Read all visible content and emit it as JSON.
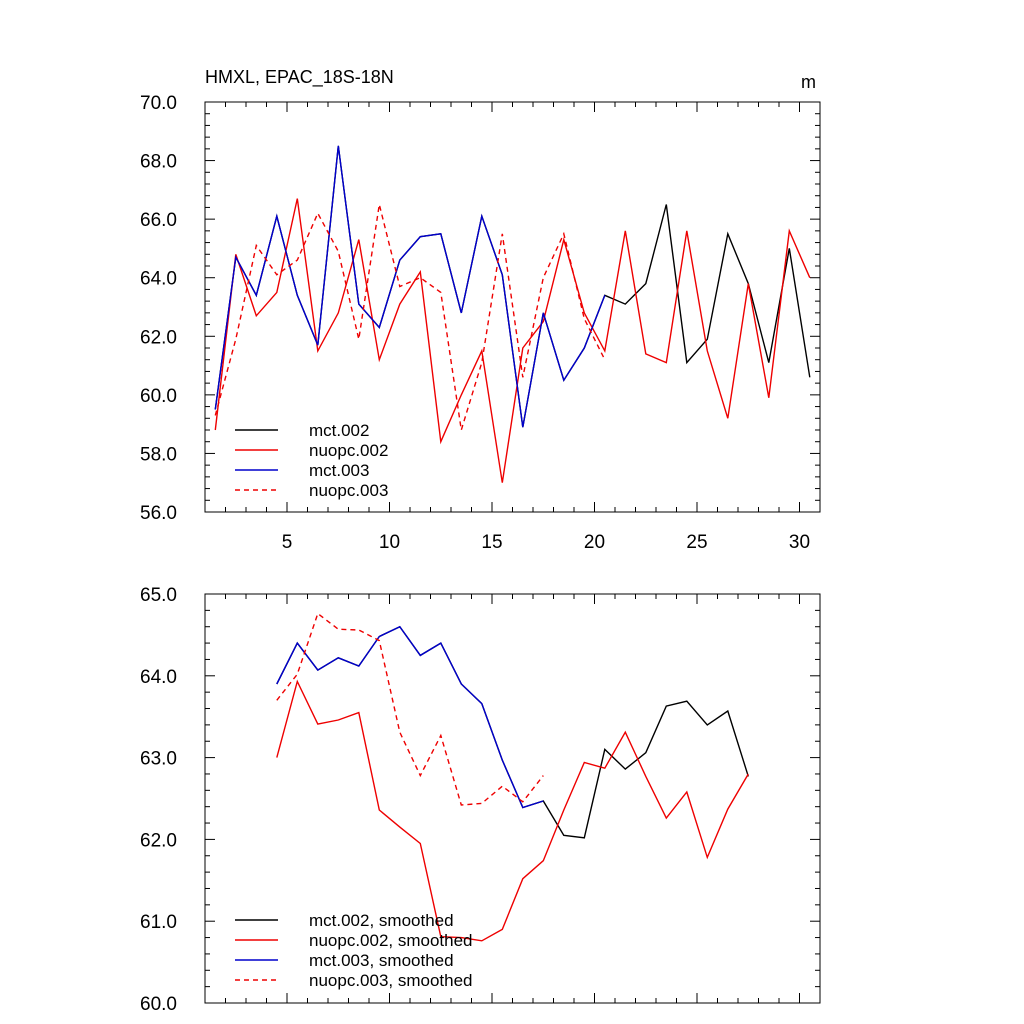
{
  "chart_data": [
    {
      "type": "line",
      "title": "HMXL, EPAC_18S-18N",
      "units": "m",
      "xlabel": "",
      "ylabel": "",
      "xlim": [
        1,
        31
      ],
      "ylim": [
        56.0,
        70.0
      ],
      "x_ticks": [
        5,
        10,
        15,
        20,
        25,
        30
      ],
      "x_tick_labels": [
        "5",
        "10",
        "15",
        "20",
        "25",
        "30"
      ],
      "y_ticks": [
        56.0,
        58.0,
        60.0,
        62.0,
        64.0,
        66.0,
        68.0,
        70.0
      ],
      "y_tick_labels": [
        "56.0",
        "58.0",
        "60.0",
        "62.0",
        "64.0",
        "66.0",
        "68.0",
        "70.0"
      ],
      "legend_position": "lower-left",
      "series": [
        {
          "name": "mct.002",
          "color": "#000000",
          "dash": "solid",
          "x": [
            1.5,
            2.5,
            3.5,
            4.5,
            5.5,
            6.5,
            7.5,
            8.5,
            9.5,
            10.5,
            11.5,
            12.5,
            13.5,
            14.5,
            15.5,
            16.5,
            17.5,
            18.5,
            19.5,
            20.5,
            21.5,
            22.5,
            23.5,
            24.5,
            25.5,
            26.5,
            27.5,
            28.5,
            29.5,
            30.5
          ],
          "values": [
            59.5,
            64.7,
            63.4,
            66.1,
            63.4,
            61.7,
            68.5,
            63.1,
            62.3,
            64.6,
            65.4,
            65.5,
            62.8,
            66.1,
            64.1,
            58.9,
            62.8,
            60.5,
            61.6,
            63.4,
            63.1,
            63.8,
            66.5,
            61.1,
            61.9,
            65.5,
            63.8,
            61.1,
            65.0,
            60.6
          ]
        },
        {
          "name": "nuopc.002",
          "color": "#ee0000",
          "dash": "solid",
          "x": [
            1.5,
            2.5,
            3.5,
            4.5,
            5.5,
            6.5,
            7.5,
            8.5,
            9.5,
            10.5,
            11.5,
            12.5,
            13.5,
            14.5,
            15.5,
            16.5,
            17.5,
            18.5,
            19.5,
            20.5,
            21.5,
            22.5,
            23.5,
            24.5,
            25.5,
            26.5,
            27.5,
            28.5,
            29.5,
            30.5
          ],
          "values": [
            58.8,
            64.8,
            62.7,
            63.5,
            66.7,
            61.5,
            62.8,
            65.3,
            61.2,
            63.1,
            64.2,
            58.4,
            60.0,
            61.5,
            57.0,
            61.6,
            62.5,
            65.3,
            62.8,
            61.5,
            65.6,
            61.4,
            61.1,
            65.6,
            61.5,
            59.2,
            63.8,
            59.9,
            65.6,
            64.0
          ]
        },
        {
          "name": "mct.003",
          "color": "#0000cc",
          "dash": "solid",
          "x": [
            1.5,
            2.5,
            3.5,
            4.5,
            5.5,
            6.5,
            7.5,
            8.5,
            9.5,
            10.5,
            11.5,
            12.5,
            13.5,
            14.5,
            15.5,
            16.5,
            17.5,
            18.5,
            19.5,
            20.5
          ],
          "values": [
            59.5,
            64.7,
            63.4,
            66.1,
            63.4,
            61.7,
            68.5,
            63.1,
            62.3,
            64.6,
            65.4,
            65.5,
            62.8,
            66.1,
            64.1,
            58.9,
            62.8,
            60.5,
            61.6,
            63.4
          ]
        },
        {
          "name": "nuopc.003",
          "color": "#ee0000",
          "dash": "dashed",
          "x": [
            1.5,
            2.5,
            3.5,
            4.5,
            5.5,
            6.5,
            7.5,
            8.5,
            9.5,
            10.5,
            11.5,
            12.5,
            13.5,
            14.5,
            15.5,
            16.5,
            17.5,
            18.5,
            19.5,
            20.5
          ],
          "values": [
            59.3,
            61.9,
            65.1,
            64.1,
            64.6,
            66.2,
            64.9,
            61.9,
            66.5,
            63.7,
            64.0,
            63.5,
            58.8,
            61.1,
            65.5,
            60.6,
            64.0,
            65.5,
            62.6,
            61.2
          ]
        }
      ]
    },
    {
      "type": "line",
      "title": "",
      "xlabel": "",
      "ylabel": "",
      "xlim": [
        1,
        31
      ],
      "ylim": [
        60.0,
        65.0
      ],
      "x_ticks": [
        5,
        10,
        15,
        20,
        25,
        30
      ],
      "x_tick_labels": [],
      "y_ticks": [
        60.0,
        61.0,
        62.0,
        63.0,
        64.0,
        65.0
      ],
      "y_tick_labels": [
        "60.0",
        "61.0",
        "62.0",
        "63.0",
        "64.0",
        "65.0"
      ],
      "legend_position": "lower-left",
      "series": [
        {
          "name": "mct.002, smoothed",
          "color": "#000000",
          "dash": "solid",
          "x": [
            4.5,
            5.5,
            6.5,
            7.5,
            8.5,
            9.5,
            10.5,
            11.5,
            12.5,
            13.5,
            14.5,
            15.5,
            16.5,
            17.5,
            18.5,
            19.5,
            20.5,
            21.5,
            22.5,
            23.5,
            24.5,
            25.5,
            26.5,
            27.5
          ],
          "values": [
            63.9,
            64.4,
            64.07,
            64.22,
            64.12,
            64.48,
            64.6,
            64.25,
            64.4,
            63.9,
            63.66,
            62.97,
            62.39,
            62.47,
            62.05,
            62.02,
            63.1,
            62.86,
            63.06,
            63.63,
            63.69,
            63.4,
            63.57,
            62.77
          ]
        },
        {
          "name": "nuopc.002, smoothed",
          "color": "#ee0000",
          "dash": "solid",
          "x": [
            4.5,
            5.5,
            6.5,
            7.5,
            8.5,
            9.5,
            10.5,
            11.5,
            12.5,
            13.5,
            14.5,
            15.5,
            16.5,
            17.5,
            18.5,
            19.5,
            20.5,
            21.5,
            22.5,
            23.5,
            24.5,
            25.5,
            26.5,
            27.5
          ],
          "values": [
            63.0,
            63.93,
            63.41,
            63.46,
            63.55,
            62.36,
            62.15,
            61.95,
            60.81,
            60.8,
            60.76,
            60.9,
            61.52,
            61.74,
            62.36,
            62.94,
            62.87,
            63.31,
            62.77,
            62.26,
            62.58,
            61.78,
            62.37,
            62.8
          ]
        },
        {
          "name": "mct.003, smoothed",
          "color": "#0000cc",
          "dash": "solid",
          "x": [
            4.5,
            5.5,
            6.5,
            7.5,
            8.5,
            9.5,
            10.5,
            11.5,
            12.5,
            13.5,
            14.5,
            15.5,
            16.5,
            17.5
          ],
          "values": [
            63.9,
            64.4,
            64.07,
            64.22,
            64.12,
            64.48,
            64.6,
            64.25,
            64.4,
            63.9,
            63.66,
            62.97,
            62.39,
            62.47
          ]
        },
        {
          "name": "nuopc.003, smoothed",
          "color": "#ee0000",
          "dash": "dashed",
          "x": [
            4.5,
            5.5,
            6.5,
            7.5,
            8.5,
            9.5,
            10.5,
            11.5,
            12.5,
            13.5,
            14.5,
            15.5,
            16.5,
            17.5
          ],
          "values": [
            63.7,
            64.02,
            64.76,
            64.57,
            64.56,
            64.43,
            63.31,
            62.78,
            63.27,
            62.42,
            62.44,
            62.65,
            62.46,
            62.78
          ]
        }
      ]
    }
  ]
}
